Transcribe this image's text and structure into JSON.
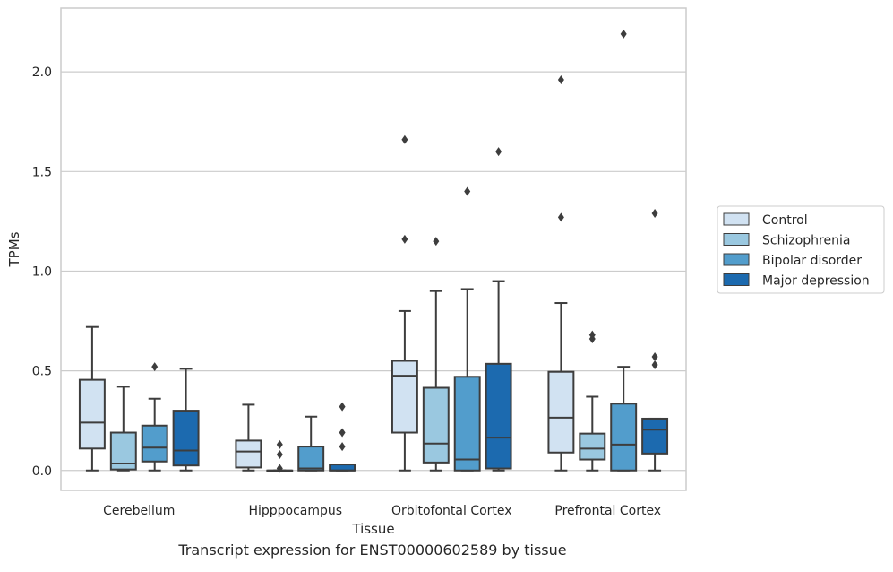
{
  "caption": "Transcript expression for ENST00000602589 by tissue",
  "chart_data": {
    "type": "box",
    "xlabel": "Tissue",
    "ylabel": "TPMs",
    "ylim": [
      -0.1,
      2.32
    ],
    "yticks": [
      0.0,
      0.5,
      1.0,
      1.5,
      2.0
    ],
    "ytick_labels": [
      "0.0",
      "0.5",
      "1.0",
      "1.5",
      "2.0"
    ],
    "grid": "horizontal",
    "legend_position": "right",
    "categories": [
      "Cerebellum",
      "Hipppocampus",
      "Orbitofontal Cortex",
      "Prefrontal Cortex"
    ],
    "series": [
      {
        "name": "Control",
        "color": "#d1e2f2",
        "boxes": [
          {
            "whislo": 0.0,
            "q1": 0.11,
            "med": 0.24,
            "q3": 0.455,
            "whishi": 0.72,
            "fliers": []
          },
          {
            "whislo": 0.0,
            "q1": 0.015,
            "med": 0.095,
            "q3": 0.15,
            "whishi": 0.33,
            "fliers": []
          },
          {
            "whislo": 0.0,
            "q1": 0.19,
            "med": 0.475,
            "q3": 0.55,
            "whishi": 0.8,
            "fliers": [
              1.16,
              1.66
            ]
          },
          {
            "whislo": 0.0,
            "q1": 0.09,
            "med": 0.265,
            "q3": 0.495,
            "whishi": 0.84,
            "fliers": [
              1.27,
              1.96
            ]
          }
        ]
      },
      {
        "name": "Schizophrenia",
        "color": "#9ac8e0",
        "boxes": [
          {
            "whislo": 0.0,
            "q1": 0.005,
            "med": 0.035,
            "q3": 0.19,
            "whishi": 0.42,
            "fliers": []
          },
          {
            "whislo": 0.0,
            "q1": 0.0,
            "med": 0.0,
            "q3": 0.0,
            "whishi": 0.0,
            "fliers": [
              0.01,
              0.08,
              0.13
            ]
          },
          {
            "whislo": 0.0,
            "q1": 0.04,
            "med": 0.135,
            "q3": 0.415,
            "whishi": 0.9,
            "fliers": [
              1.15
            ]
          },
          {
            "whislo": 0.0,
            "q1": 0.055,
            "med": 0.11,
            "q3": 0.185,
            "whishi": 0.37,
            "fliers": [
              0.66,
              0.68
            ]
          }
        ]
      },
      {
        "name": "Bipolar disorder",
        "color": "#529dcc",
        "boxes": [
          {
            "whislo": 0.0,
            "q1": 0.045,
            "med": 0.115,
            "q3": 0.225,
            "whishi": 0.36,
            "fliers": [
              0.52
            ]
          },
          {
            "whislo": 0.0,
            "q1": 0.0,
            "med": 0.01,
            "q3": 0.12,
            "whishi": 0.27,
            "fliers": []
          },
          {
            "whislo": 0.0,
            "q1": 0.0,
            "med": 0.055,
            "q3": 0.47,
            "whishi": 0.91,
            "fliers": [
              1.4
            ]
          },
          {
            "whislo": 0.0,
            "q1": 0.0,
            "med": 0.13,
            "q3": 0.335,
            "whishi": 0.52,
            "fliers": [
              2.19
            ]
          }
        ]
      },
      {
        "name": "Major depression",
        "color": "#1c6aaf",
        "boxes": [
          {
            "whislo": 0.0,
            "q1": 0.025,
            "med": 0.1,
            "q3": 0.3,
            "whishi": 0.51,
            "fliers": []
          },
          {
            "whislo": 0.0,
            "q1": 0.0,
            "med": 0.0,
            "q3": 0.03,
            "whishi": 0.03,
            "fliers": [
              0.12,
              0.19,
              0.32
            ]
          },
          {
            "whislo": 0.0,
            "q1": 0.01,
            "med": 0.165,
            "q3": 0.535,
            "whishi": 0.95,
            "fliers": [
              1.6
            ]
          },
          {
            "whislo": 0.0,
            "q1": 0.085,
            "med": 0.205,
            "q3": 0.26,
            "whishi": 0.26,
            "fliers": [
              0.53,
              0.57,
              1.29
            ]
          }
        ]
      }
    ]
  }
}
